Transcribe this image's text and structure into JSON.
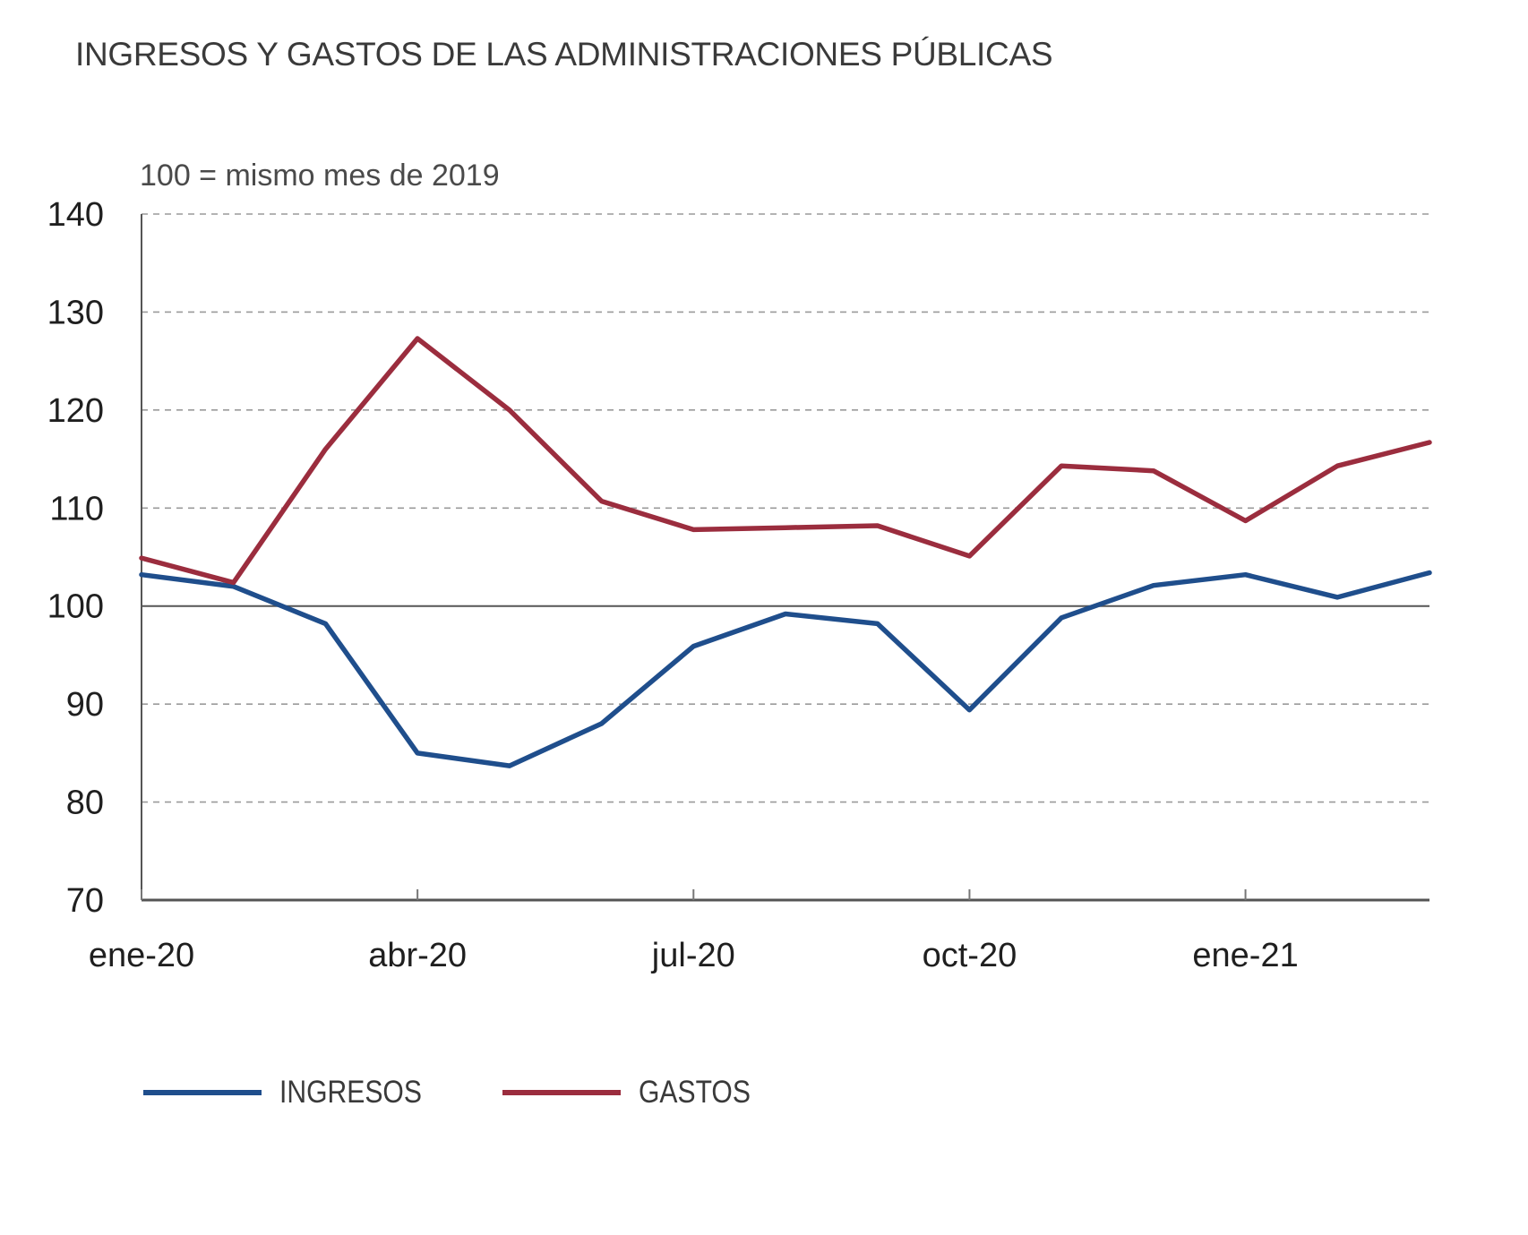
{
  "chart_data": {
    "type": "line",
    "title": "INGRESOS Y GASTOS DE LAS ADMINISTRACIONES PÚBLICAS",
    "ylabel": "100 = mismo mes de 2019",
    "xlabel": "",
    "ylim": [
      70,
      140
    ],
    "yticks": [
      70,
      80,
      90,
      100,
      110,
      120,
      130,
      140
    ],
    "grid": true,
    "reference_line": 100,
    "legend_position": "bottom-left",
    "x": [
      "ene-20",
      "feb-20",
      "mar-20",
      "abr-20",
      "may-20",
      "jun-20",
      "jul-20",
      "ago-20",
      "sep-20",
      "oct-20",
      "nov-20",
      "dic-20",
      "ene-21",
      "feb-21",
      "mar-21"
    ],
    "xtick_labels": [
      {
        "label": "ene-20",
        "index": 0
      },
      {
        "label": "abr-20",
        "index": 3
      },
      {
        "label": "jul-20",
        "index": 6
      },
      {
        "label": "oct-20",
        "index": 9
      },
      {
        "label": "ene-21",
        "index": 12
      }
    ],
    "series": [
      {
        "name": "INGRESOS",
        "color": "#1f4e8c",
        "values": [
          103.2,
          102.0,
          98.2,
          85.0,
          83.7,
          88.0,
          95.9,
          99.2,
          98.2,
          89.4,
          98.8,
          102.1,
          103.2,
          100.9,
          103.4
        ]
      },
      {
        "name": "GASTOS",
        "color": "#9b2d3e",
        "values": [
          104.9,
          102.4,
          116.0,
          127.3,
          120.0,
          110.7,
          107.8,
          108.0,
          108.2,
          105.1,
          114.3,
          113.8,
          108.7,
          114.3,
          116.7
        ]
      }
    ]
  }
}
